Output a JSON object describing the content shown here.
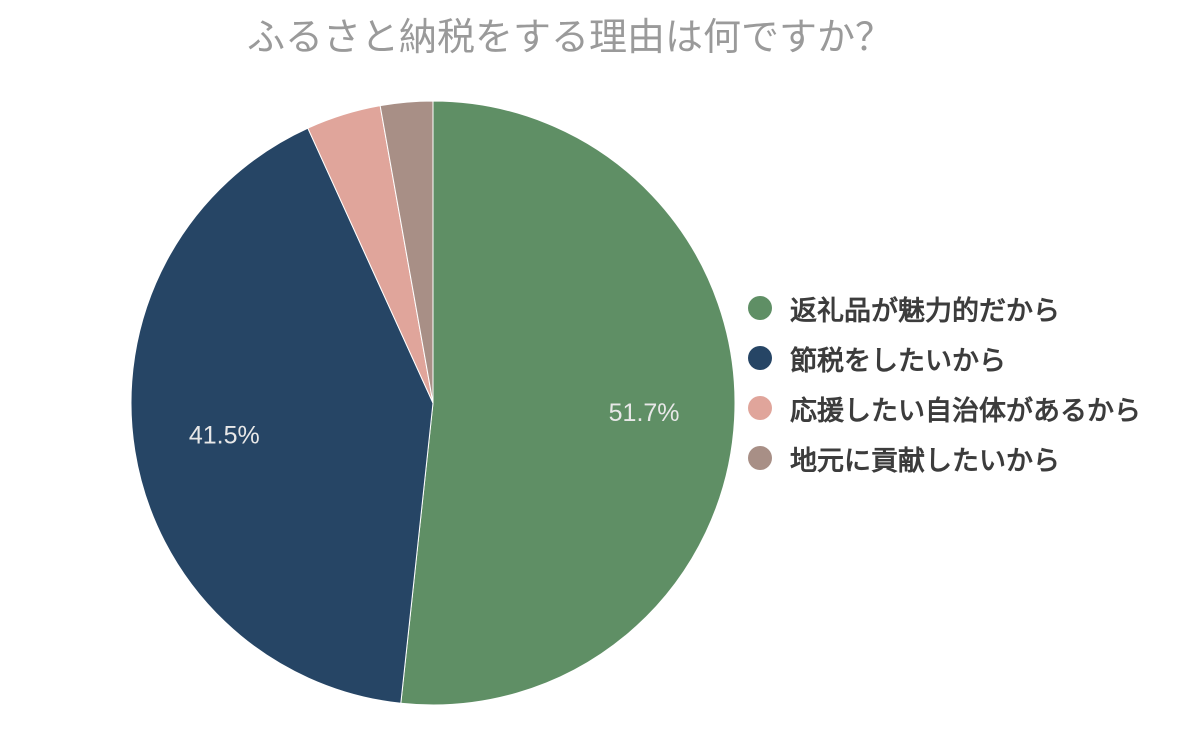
{
  "chart_data": {
    "type": "pie",
    "title": "ふるさと納税をする理由は何ですか？",
    "legend_position": "right",
    "slices": [
      {
        "label": "返礼品が魅力的だから",
        "value": 51.7,
        "display": "51.7%",
        "color": "#5f8f65"
      },
      {
        "label": "節税をしたいから",
        "value": 41.5,
        "display": "41.5%",
        "color": "#264565"
      },
      {
        "label": "応援したい自治体があるから",
        "value": 4.0,
        "display": "",
        "color": "#e0a59b"
      },
      {
        "label": "地元に貢献したいから",
        "value": 2.8,
        "display": "",
        "color": "#a88f86"
      }
    ]
  }
}
